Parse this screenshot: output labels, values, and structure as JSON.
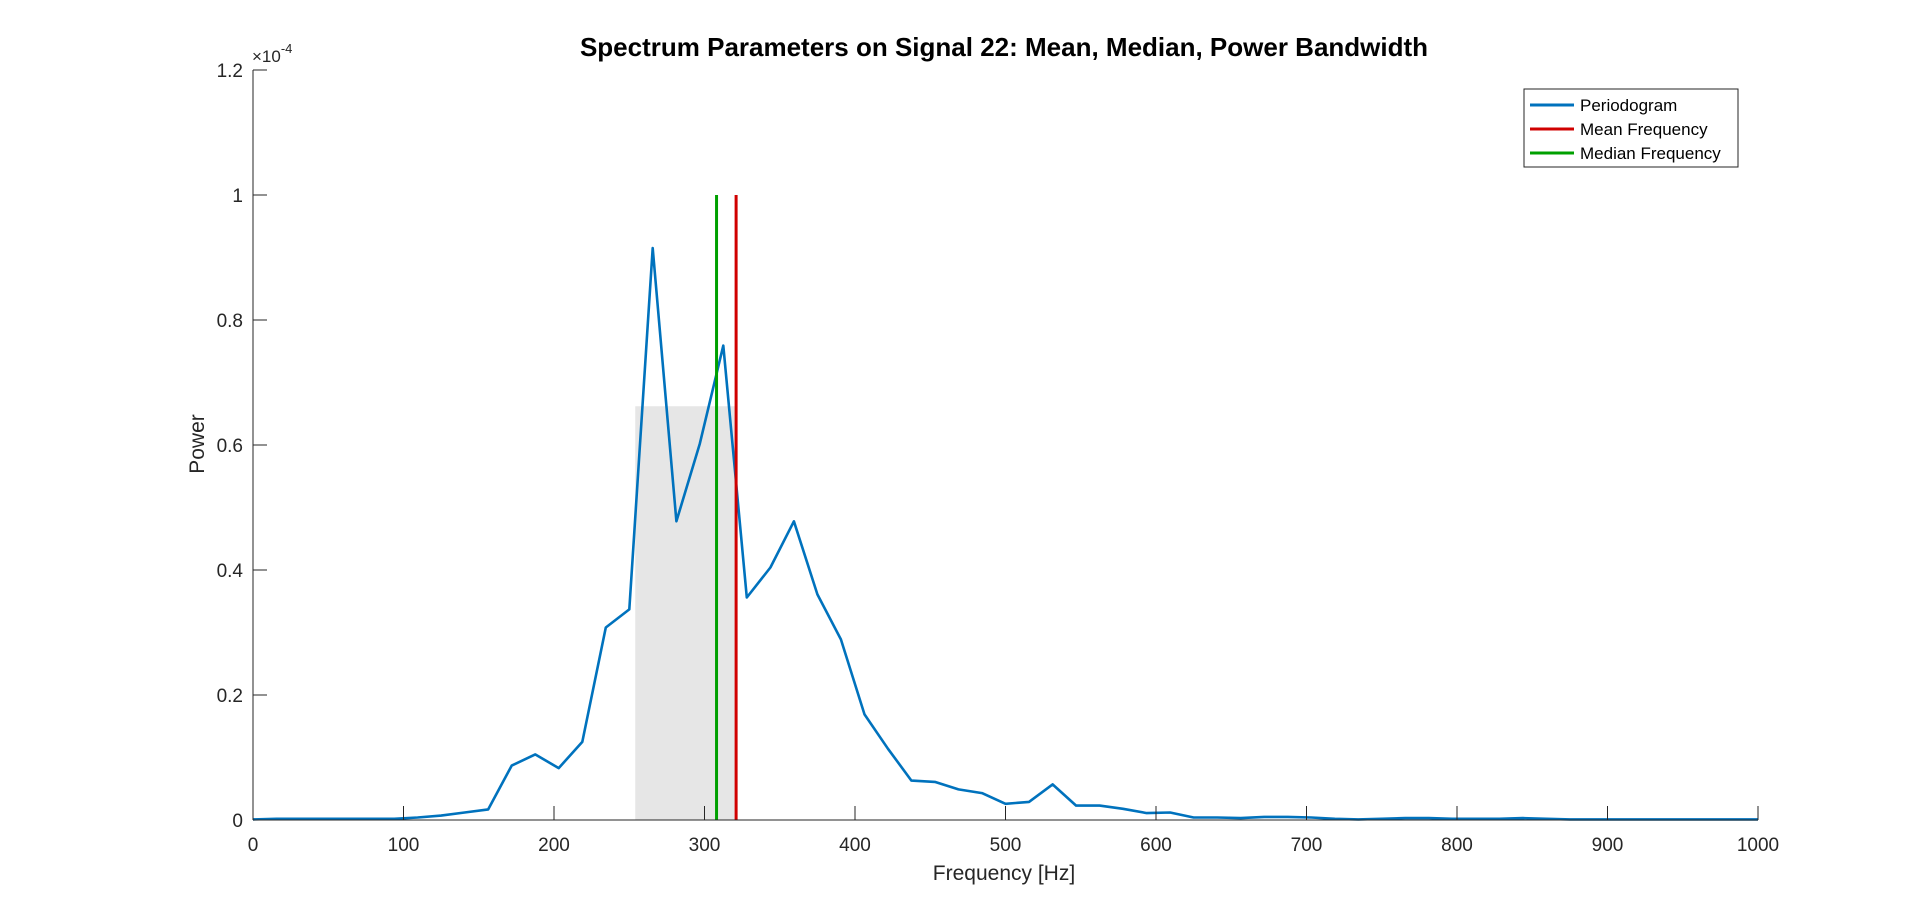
{
  "chart_data": {
    "type": "line",
    "title": "Spectrum Parameters on Signal 22: Mean, Median, Power Bandwidth",
    "xlabel": "Frequency [Hz]",
    "ylabel": "Power",
    "xlim": [
      0,
      1000
    ],
    "ylim": [
      0,
      0.00012
    ],
    "y_exponent_label": {
      "base": "×10",
      "power": "-4"
    },
    "x_ticks": [
      0,
      100,
      200,
      300,
      400,
      500,
      600,
      700,
      800,
      900,
      1000
    ],
    "x_tick_labels": [
      "0",
      "100",
      "200",
      "300",
      "400",
      "500",
      "600",
      "700",
      "800",
      "900",
      "1000"
    ],
    "y_ticks": [
      0,
      2e-05,
      4e-05,
      6e-05,
      8e-05,
      0.0001,
      0.00012
    ],
    "y_tick_labels": [
      "0",
      "0.2",
      "0.4",
      "0.6",
      "0.8",
      "1",
      "1.2"
    ],
    "grid": false,
    "legend_position": "top-right",
    "series": [
      {
        "name": "Periodogram",
        "color": "#0072BD",
        "x": [
          0,
          15.6,
          31.3,
          46.9,
          62.5,
          78.1,
          93.8,
          109.4,
          125,
          140.6,
          156.3,
          171.9,
          187.5,
          203.1,
          218.8,
          234.4,
          250,
          265.6,
          281.3,
          296.9,
          312.5,
          328.1,
          343.8,
          359.4,
          375,
          390.6,
          406.3,
          421.9,
          437.5,
          453.1,
          468.8,
          484.4,
          500,
          515.6,
          531.3,
          546.9,
          562.5,
          578.1,
          593.8,
          609.4,
          625,
          640.6,
          656.3,
          671.9,
          687.5,
          703.1,
          718.8,
          734.4,
          750,
          765.6,
          781.3,
          796.9,
          812.5,
          828.1,
          843.8,
          859.4,
          875,
          890.6,
          906.3,
          921.9,
          937.5,
          953.1,
          968.8,
          984.4,
          1000
        ],
        "y": [
          1e-07,
          2e-07,
          2e-07,
          2e-07,
          2e-07,
          2e-07,
          2e-07,
          4e-07,
          7e-07,
          1.2e-06,
          1.7e-06,
          8.7e-06,
          1.05e-05,
          8.3e-06,
          1.25e-05,
          3.08e-05,
          3.37e-05,
          9.15e-05,
          4.78e-05,
          6.02e-05,
          7.59e-05,
          3.56e-05,
          4.04e-05,
          4.78e-05,
          3.61e-05,
          2.89e-05,
          1.69e-05,
          1.14e-05,
          6.3e-06,
          6.1e-06,
          4.9e-06,
          4.3e-06,
          2.6e-06,
          2.9e-06,
          5.7e-06,
          2.3e-06,
          2.3e-06,
          1.8e-06,
          1.1e-06,
          1.2e-06,
          4e-07,
          4e-07,
          3e-07,
          5e-07,
          5e-07,
          4e-07,
          2e-07,
          1e-07,
          2e-07,
          3e-07,
          3e-07,
          2e-07,
          2e-07,
          2e-07,
          3e-07,
          2e-07,
          1e-07,
          1e-07,
          1e-07,
          1e-07,
          1e-07,
          1e-07,
          1e-07,
          1e-07,
          1e-07
        ]
      },
      {
        "name": "Mean Frequency",
        "color": "#D00000",
        "type": "vline",
        "x": 321,
        "y_range": [
          0,
          0.0001
        ]
      },
      {
        "name": "Median Frequency",
        "color": "#00A000",
        "type": "vline",
        "x": 308,
        "y_range": [
          0,
          0.0001
        ]
      }
    ],
    "power_bandwidth_band": {
      "x_range": [
        254,
        320
      ],
      "y_level": 6.62e-05,
      "color": "#E6E6E6"
    }
  }
}
